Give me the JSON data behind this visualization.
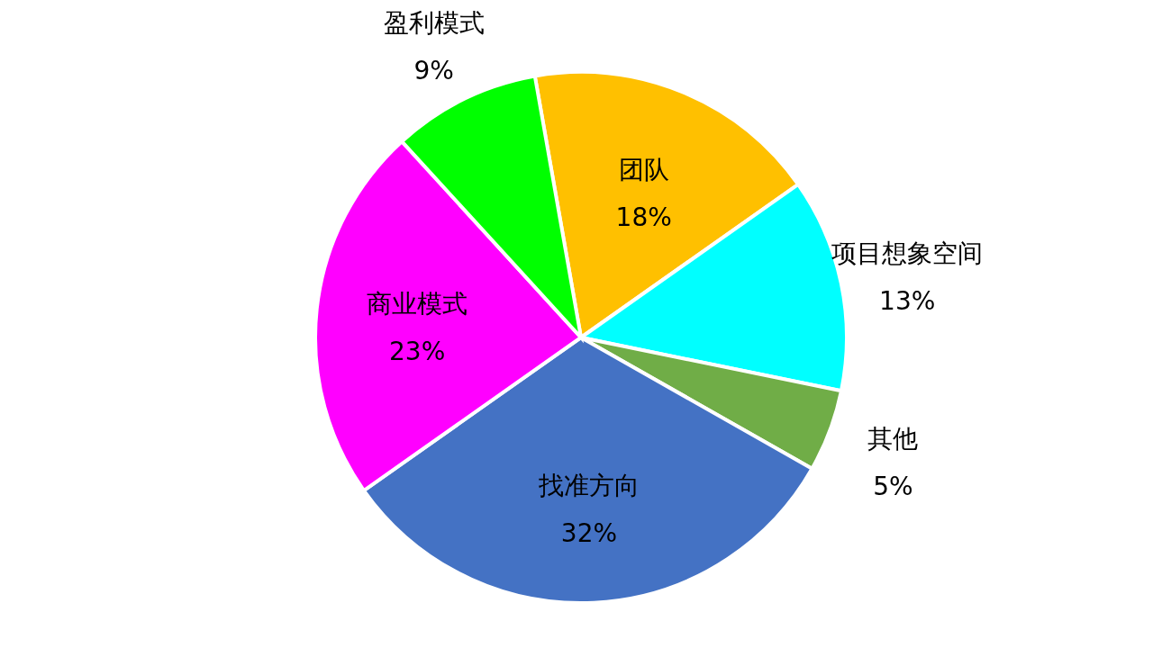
{
  "chart_data": {
    "type": "pie",
    "categories": [
      "团队",
      "项目想象空间",
      "其他",
      "找准方向",
      "商业模式",
      "盈利模式"
    ],
    "values": [
      18,
      13,
      5,
      32,
      23,
      9
    ],
    "value_labels": [
      "18%",
      "13%",
      "5%",
      "32%",
      "23%",
      "9%"
    ],
    "colors": [
      "#ffc000",
      "#00ffff",
      "#70ad47",
      "#4472c4",
      "#ff00ff",
      "#00ff00"
    ]
  }
}
